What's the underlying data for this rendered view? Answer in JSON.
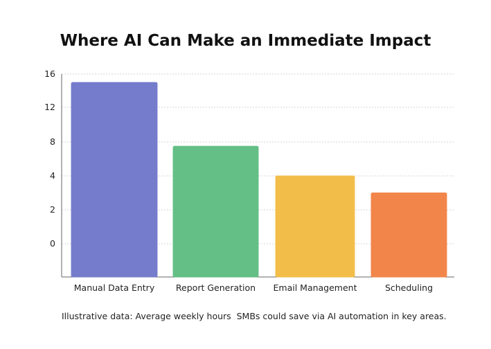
{
  "chart_data": {
    "type": "bar",
    "title": "Where AI Can Make an Immediate Impact",
    "categories": [
      "Manual Data Entry",
      "Report Generation",
      "Email Management",
      "Scheduling"
    ],
    "values": [
      15,
      7.5,
      4,
      3
    ],
    "y_ticks": [
      "0",
      "2",
      "4",
      "8",
      "12",
      "16"
    ],
    "y_tick_values": [
      0,
      2,
      4,
      8,
      12,
      16
    ],
    "colors": [
      "#7b83d6",
      "#68c98c",
      "#ffc84d",
      "#ff8c4d"
    ],
    "grid": true,
    "legend": "none",
    "xlabel": "",
    "ylabel": ""
  },
  "caption": "Illustrative data: Average weekly hours  SMBs could save via AI automation in key areas."
}
